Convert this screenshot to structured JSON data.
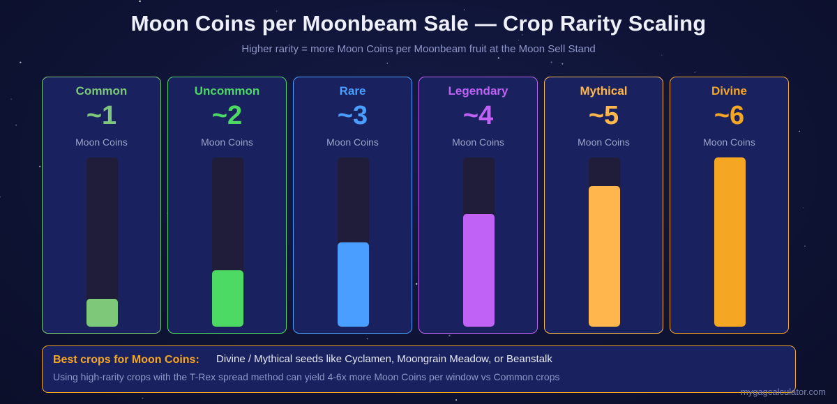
{
  "header": {
    "title": "Moon Coins per Moonbeam Sale — Crop Rarity Scaling",
    "subtitle": "Higher rarity = more Moon Coins per Moonbeam fruit at the Moon Sell Stand"
  },
  "chart_data": {
    "type": "bar",
    "title": "Moon Coins per Moonbeam Sale — Crop Rarity Scaling",
    "subtitle": "Higher rarity = more Moon Coins per Moonbeam fruit at the Moon Sell Stand",
    "categories": [
      "Common",
      "Uncommon",
      "Rare",
      "Legendary",
      "Mythical",
      "Divine"
    ],
    "values": [
      1,
      2,
      3,
      4,
      5,
      6
    ],
    "value_labels": [
      "~1",
      "~2",
      "~3",
      "~4",
      "~5",
      "~6"
    ],
    "unit_label": "Moon Coins",
    "ylim": [
      0,
      6
    ],
    "grid": false,
    "colors": [
      "#7ec87a",
      "#4cd964",
      "#4a9eff",
      "#c062f5",
      "#ffb74d",
      "#f5a623"
    ]
  },
  "info": {
    "heading": "Best crops for Moon Coins:",
    "text": "Divine / Mythical seeds like Cyclamen, Moongrain Meadow, or Beanstalk",
    "note": "Using high-rarity crops with the T-Rex spread method can yield 4-6x more Moon Coins per window vs Common crops"
  },
  "watermark": "mygagcalculator.com"
}
